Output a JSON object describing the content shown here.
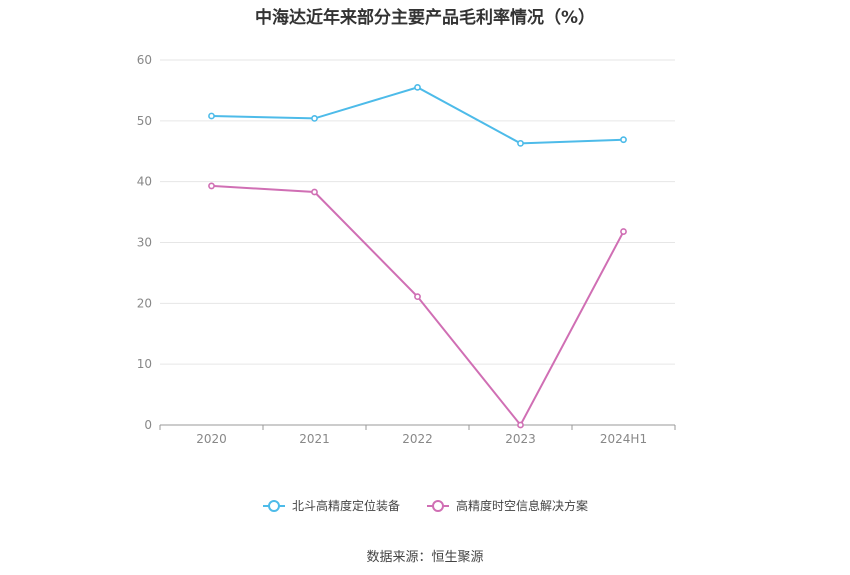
{
  "chart_data": {
    "type": "line",
    "title": "中海达近年来部分主要产品毛利率情况（%）",
    "categories": [
      "2020",
      "2021",
      "2022",
      "2023",
      "2024H1"
    ],
    "ylim": [
      0,
      60
    ],
    "yticks": [
      "0",
      "10",
      "20",
      "30",
      "40",
      "50",
      "60"
    ],
    "grid": true,
    "legend_position": "bottom",
    "series": [
      {
        "name": "北斗高精度定位装备",
        "values": [
          50.8,
          50.4,
          55.5,
          46.3,
          46.9
        ],
        "color": "#4dbbe9"
      },
      {
        "name": "高精度时空信息解决方案",
        "values": [
          39.3,
          38.3,
          21.1,
          0.0,
          31.8
        ],
        "color": "#d06fb4"
      }
    ]
  },
  "source": "数据来源：恒生聚源"
}
